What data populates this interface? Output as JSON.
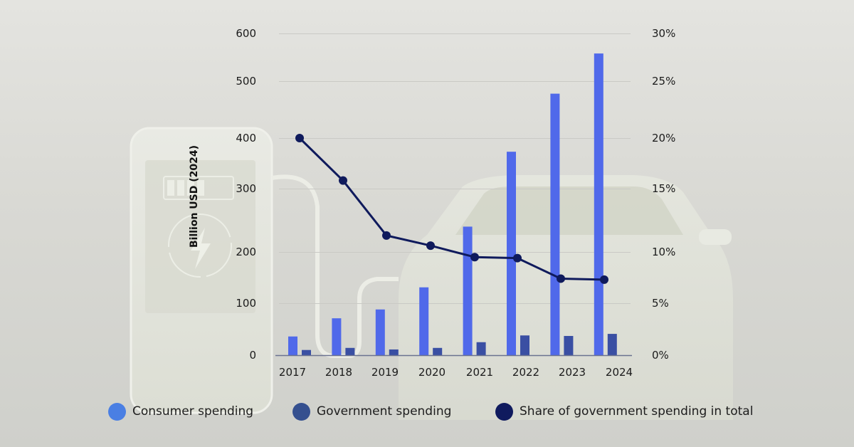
{
  "chart_data": {
    "type": "bar",
    "title": "",
    "xlabel": "",
    "ylabel": "Billion USD (2024)",
    "y2label": "",
    "categories": [
      "2017",
      "2018",
      "2019",
      "2020",
      "2021",
      "2022",
      "2023",
      "2024"
    ],
    "ylim": [
      0,
      600
    ],
    "y2lim": [
      0,
      30
    ],
    "yticks": [
      "0",
      "100",
      "200",
      "300",
      "400",
      "500",
      "600"
    ],
    "y2ticks": [
      "0%",
      "5%",
      "10%",
      "15%",
      "20%",
      "25%",
      "30%"
    ],
    "grid": true,
    "legend_position": "bottom",
    "series": [
      {
        "name": "Consumer spending",
        "type": "bar",
        "axis": "left",
        "color": "#5069ea",
        "values": [
          36,
          71,
          88,
          131,
          240,
          373,
          478,
          558
        ]
      },
      {
        "name": "Government spending",
        "type": "bar",
        "axis": "left",
        "color": "#3a4fa3",
        "values": [
          10,
          14,
          11,
          14,
          25,
          38,
          37,
          41
        ]
      },
      {
        "name": "Share of government spending in total",
        "type": "line",
        "axis": "right",
        "unit": "%",
        "color": "#0f1a5c",
        "values": [
          20.0,
          15.8,
          11.3,
          10.5,
          9.5,
          9.4,
          7.4,
          7.3
        ]
      }
    ]
  },
  "legend": [
    {
      "label": "Consumer spending",
      "color": "#4a7fe3"
    },
    {
      "label": "Government spending",
      "color": "#35508f"
    },
    {
      "label": "Share of government spending in total",
      "color": "#101b5e"
    }
  ]
}
